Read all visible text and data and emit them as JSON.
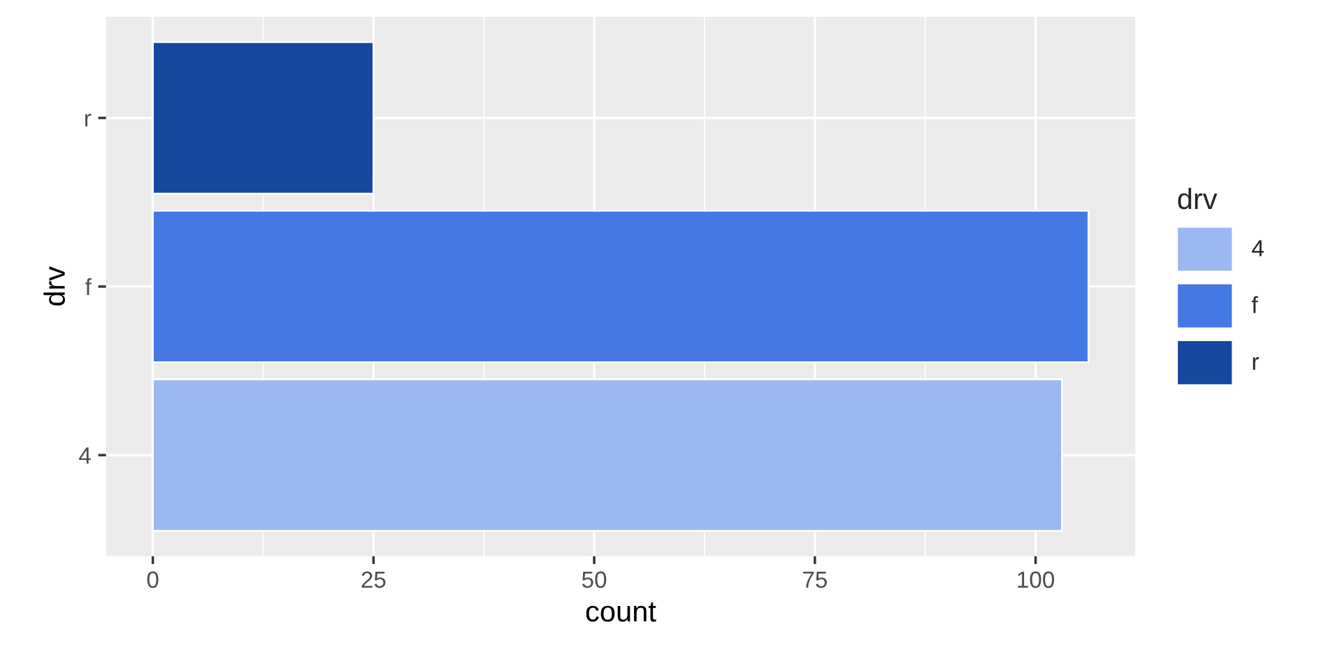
{
  "chart_data": {
    "type": "bar",
    "orientation": "horizontal",
    "xlabel": "count",
    "ylabel": "drv",
    "legend_title": "drv",
    "categories": [
      "r",
      "f",
      "4"
    ],
    "series": [
      {
        "name": "4",
        "color": "#9bb9f0",
        "values": [
          null,
          null,
          103
        ]
      },
      {
        "name": "f",
        "color": "#4479e3",
        "values": [
          null,
          106,
          null
        ]
      },
      {
        "name": "r",
        "color": "#17479e",
        "values": [
          25,
          null,
          null
        ]
      }
    ],
    "xlim": [
      -5.3,
      111.3
    ],
    "xticks": [
      0,
      25,
      50,
      75,
      100
    ],
    "grid": true,
    "legend": "right"
  }
}
